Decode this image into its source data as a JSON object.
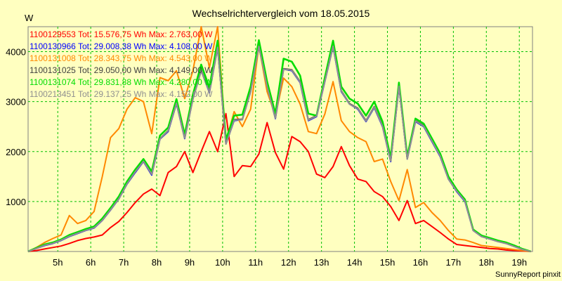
{
  "chart_data": {
    "type": "line",
    "title": "Wechselrichtervergleich vom 18.05.2015",
    "ylabel": "W",
    "footer": "SunnyReport pinxit",
    "xlim": [
      4.1,
      19.4
    ],
    "ylim": [
      0,
      4500
    ],
    "grid": true,
    "legend_placement": "top-left",
    "x_ticks": [
      {
        "value": 5,
        "label": "5h"
      },
      {
        "value": 6,
        "label": "6h"
      },
      {
        "value": 7,
        "label": "7h"
      },
      {
        "value": 8,
        "label": "8h"
      },
      {
        "value": 9,
        "label": "9h"
      },
      {
        "value": 10,
        "label": "10h"
      },
      {
        "value": 11,
        "label": "11h"
      },
      {
        "value": 12,
        "label": "12h"
      },
      {
        "value": 13,
        "label": "13h"
      },
      {
        "value": 14,
        "label": "14h"
      },
      {
        "value": 15,
        "label": "15h"
      },
      {
        "value": 16,
        "label": "16h"
      },
      {
        "value": 17,
        "label": "17h"
      },
      {
        "value": 18,
        "label": "18h"
      },
      {
        "value": 19,
        "label": "19h"
      }
    ],
    "y_ticks": [
      {
        "value": 1000,
        "label": "1000"
      },
      {
        "value": 2000,
        "label": "2000"
      },
      {
        "value": 3000,
        "label": "3000"
      },
      {
        "value": 4000,
        "label": "4000"
      }
    ],
    "x": [
      4.1,
      4.35,
      4.6,
      4.85,
      5.1,
      5.35,
      5.6,
      5.85,
      6.1,
      6.35,
      6.6,
      6.85,
      7.1,
      7.35,
      7.6,
      7.85,
      8.1,
      8.35,
      8.6,
      8.85,
      9.1,
      9.35,
      9.6,
      9.85,
      10.1,
      10.35,
      10.6,
      10.85,
      11.1,
      11.35,
      11.6,
      11.85,
      12.1,
      12.35,
      12.6,
      12.85,
      13.1,
      13.35,
      13.6,
      13.85,
      14.1,
      14.35,
      14.6,
      14.85,
      15.1,
      15.35,
      15.6,
      15.85,
      16.1,
      16.35,
      16.6,
      16.85,
      17.1,
      17.35,
      17.6,
      17.85,
      18.1,
      18.35,
      18.6,
      18.85,
      19.1,
      19.35
    ],
    "series": [
      {
        "name": "1100129553 Tot: 15.576,75 Wh Max: 2.763,00 W",
        "color": "#FF0000",
        "values": [
          0,
          20,
          50,
          80,
          110,
          160,
          220,
          260,
          290,
          330,
          480,
          600,
          780,
          980,
          1150,
          1250,
          1120,
          1580,
          1700,
          2000,
          1580,
          2000,
          2400,
          2000,
          2760,
          1500,
          1720,
          1700,
          1950,
          2580,
          1980,
          1650,
          2300,
          2200,
          2000,
          1550,
          1480,
          1700,
          2100,
          1720,
          1450,
          1400,
          1200,
          1100,
          900,
          620,
          1020,
          560,
          620,
          500,
          380,
          250,
          140,
          120,
          100,
          80,
          60,
          50,
          30,
          20,
          10,
          0
        ]
      },
      {
        "name": "1100130966 Tot: 29.008,38 Wh Max: 4.108,00 W",
        "color": "#0000FF",
        "values": [
          0,
          60,
          120,
          160,
          220,
          300,
          360,
          420,
          470,
          620,
          830,
          1050,
          1350,
          1580,
          1800,
          1530,
          2250,
          2400,
          2960,
          2260,
          3050,
          3620,
          3180,
          4080,
          2150,
          2620,
          2640,
          3200,
          4100,
          3300,
          2660,
          3650,
          3620,
          3380,
          2620,
          2700,
          3400,
          4100,
          3200,
          2950,
          2850,
          2600,
          2880,
          2500,
          1800,
          3300,
          1850,
          2600,
          2500,
          2200,
          1900,
          1450,
          1200,
          1000,
          420,
          300,
          250,
          200,
          160,
          100,
          40,
          0
        ]
      },
      {
        "name": "1100131008 Tot: 28.343,75 Wh Max: 4.543,00 W",
        "color": "#FF8800",
        "values": [
          0,
          80,
          180,
          260,
          330,
          720,
          560,
          620,
          800,
          1500,
          2280,
          2460,
          2850,
          3080,
          3000,
          2360,
          3480,
          3420,
          3620,
          3060,
          3620,
          4500,
          3680,
          4500,
          2200,
          2800,
          2500,
          2850,
          4120,
          3200,
          2720,
          3470,
          3300,
          2950,
          2400,
          2360,
          2750,
          3400,
          2620,
          2400,
          2280,
          2200,
          1800,
          1850,
          1400,
          1020,
          1640,
          880,
          980,
          780,
          620,
          420,
          250,
          230,
          180,
          120,
          100,
          80,
          60,
          40,
          20,
          0
        ]
      },
      {
        "name": "1100131025 Tot: 29.050,00 Wh Max: 4.149,00 W",
        "color": "#404040",
        "values": [
          0,
          60,
          130,
          170,
          230,
          310,
          370,
          430,
          480,
          630,
          840,
          1060,
          1360,
          1600,
          1810,
          1550,
          2260,
          2420,
          2980,
          2280,
          3060,
          3630,
          3200,
          4100,
          2160,
          2640,
          2650,
          3210,
          4120,
          3310,
          2680,
          3660,
          3640,
          3400,
          2640,
          2720,
          3420,
          4120,
          3220,
          2960,
          2870,
          2620,
          2900,
          2520,
          1820,
          3320,
          1860,
          2620,
          2520,
          2220,
          1920,
          1460,
          1220,
          1020,
          430,
          310,
          260,
          210,
          170,
          110,
          40,
          0
        ]
      },
      {
        "name": "1100131074 Tot: 29.831,88 Wh Max: 4.280,00 W",
        "color": "#00DD00",
        "values": [
          0,
          70,
          140,
          180,
          240,
          330,
          390,
          450,
          500,
          660,
          870,
          1100,
          1400,
          1640,
          1850,
          1600,
          2320,
          2480,
          3050,
          2340,
          3140,
          3740,
          3280,
          4220,
          2240,
          2720,
          2740,
          3300,
          4230,
          3400,
          2760,
          3860,
          3800,
          3520,
          2760,
          2720,
          3480,
          4220,
          3300,
          3060,
          2960,
          2720,
          3000,
          2600,
          1880,
          3380,
          1900,
          2660,
          2560,
          2260,
          1960,
          1500,
          1240,
          1040,
          440,
          320,
          270,
          220,
          180,
          120,
          50,
          0
        ]
      },
      {
        "name": "1100213451 Tot: 29.137,25 Wh Max: 4.152,00 W",
        "color": "#909090",
        "values": [
          0,
          60,
          125,
          165,
          225,
          305,
          365,
          425,
          475,
          625,
          835,
          1055,
          1355,
          1595,
          1805,
          1545,
          2255,
          2415,
          2970,
          2270,
          3050,
          3620,
          3190,
          4090,
          2150,
          2630,
          2640,
          3200,
          4110,
          3300,
          2670,
          3650,
          3630,
          3390,
          2630,
          2710,
          3410,
          4110,
          3210,
          2950,
          2860,
          2610,
          2890,
          2510,
          1810,
          3310,
          1850,
          2610,
          2510,
          2210,
          1910,
          1450,
          1210,
          1010,
          420,
          300,
          250,
          200,
          160,
          100,
          40,
          0
        ]
      }
    ]
  }
}
